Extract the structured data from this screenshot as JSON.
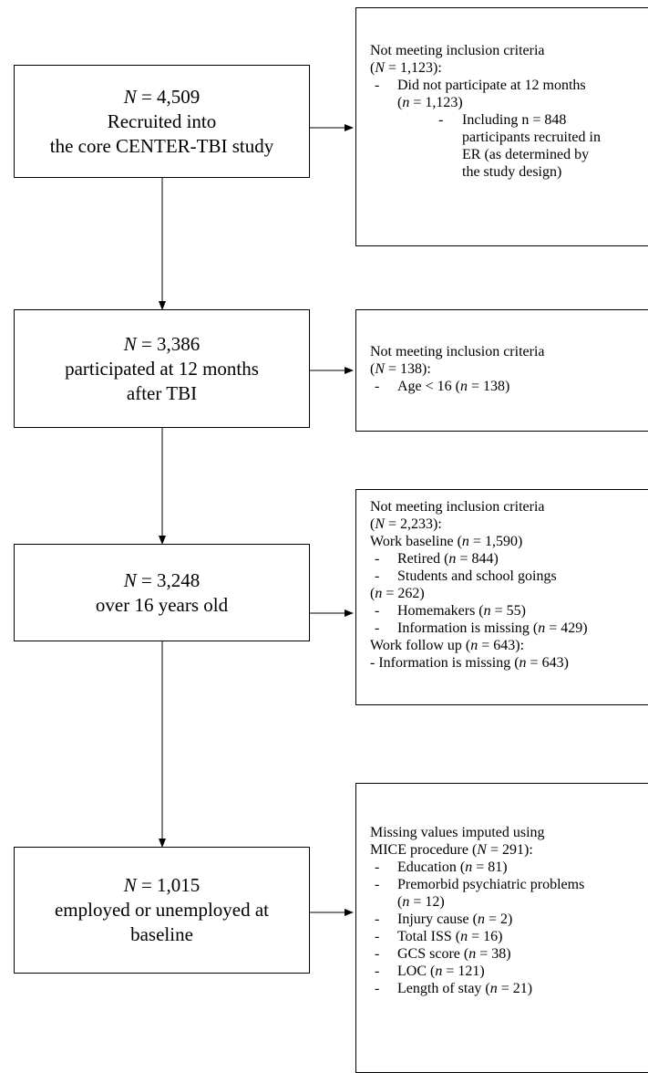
{
  "main_boxes": [
    {
      "count": "N = 4,509",
      "lines": [
        "Recruited into",
        "the core CENTER-TBI study"
      ]
    },
    {
      "count": "N = 3,386",
      "lines": [
        "participated at 12 months",
        "after TBI"
      ]
    },
    {
      "count": "N = 3,248",
      "lines": [
        "over 16 years old"
      ]
    },
    {
      "count": "N = 1,015",
      "lines": [
        "employed or unemployed at",
        "baseline"
      ]
    }
  ],
  "exclusion_boxes": [
    {
      "header": "Not meeting inclusion criteria",
      "header_n": "(N = 1,123):",
      "rows": [
        {
          "bullet": "-",
          "text": "Did not participate at 12 months",
          "indent": 1
        },
        {
          "bullet": "",
          "text": "(n = 1,123)",
          "indent": 1
        },
        {
          "bullet": "-",
          "text": "Including n = 848",
          "indent": 3
        },
        {
          "bullet": "",
          "text": "participants recruited in",
          "indent": 3
        },
        {
          "bullet": "",
          "text": "ER (as determined by",
          "indent": 3
        },
        {
          "bullet": "",
          "text": "the study design)",
          "indent": 3
        }
      ]
    },
    {
      "header": "Not meeting inclusion criteria",
      "header_n": "(N = 138):",
      "rows": [
        {
          "bullet": "-",
          "text": "Age < 16 (n = 138)",
          "indent": 1
        }
      ]
    },
    {
      "header": "Not meeting inclusion criteria",
      "header_n": "(N = 2,233):",
      "rows": [
        {
          "bullet": "",
          "text": "Work baseline (n = 1,590)",
          "indent": 0
        },
        {
          "bullet": "-",
          "text": "Retired (n = 844)",
          "indent": 1
        },
        {
          "bullet": "-",
          "text": "Students and school goings",
          "indent": 1
        },
        {
          "bullet": "",
          "text": "(n = 262)",
          "indent": 0
        },
        {
          "bullet": "-",
          "text": "Homemakers (n = 55)",
          "indent": 1
        },
        {
          "bullet": "-",
          "text": "Information is missing (n = 429)",
          "indent": 1
        },
        {
          "bullet": "",
          "text": "Work follow up (n = 643):",
          "indent": 0
        },
        {
          "bullet": "",
          "text": "- Information is missing (n = 643)",
          "indent": 0
        }
      ]
    },
    {
      "header": "Missing values imputed using",
      "header_n": "MICE procedure (N = 291):",
      "rows": [
        {
          "bullet": "-",
          "text": "Education (n = 81)",
          "indent": 1
        },
        {
          "bullet": "-",
          "text": "Premorbid psychiatric problems",
          "indent": 1
        },
        {
          "bullet": "",
          "text": "(n = 12)",
          "indent": 1
        },
        {
          "bullet": "-",
          "text": "Injury cause (n = 2)",
          "indent": 1
        },
        {
          "bullet": "-",
          "text": "Total ISS (n = 16)",
          "indent": 1
        },
        {
          "bullet": "-",
          "text": "GCS score (n = 38)",
          "indent": 1
        },
        {
          "bullet": "-",
          "text": "LOC (n = 121)",
          "indent": 1
        },
        {
          "bullet": "-",
          "text": "Length of stay (n = 21)",
          "indent": 1
        }
      ]
    }
  ]
}
